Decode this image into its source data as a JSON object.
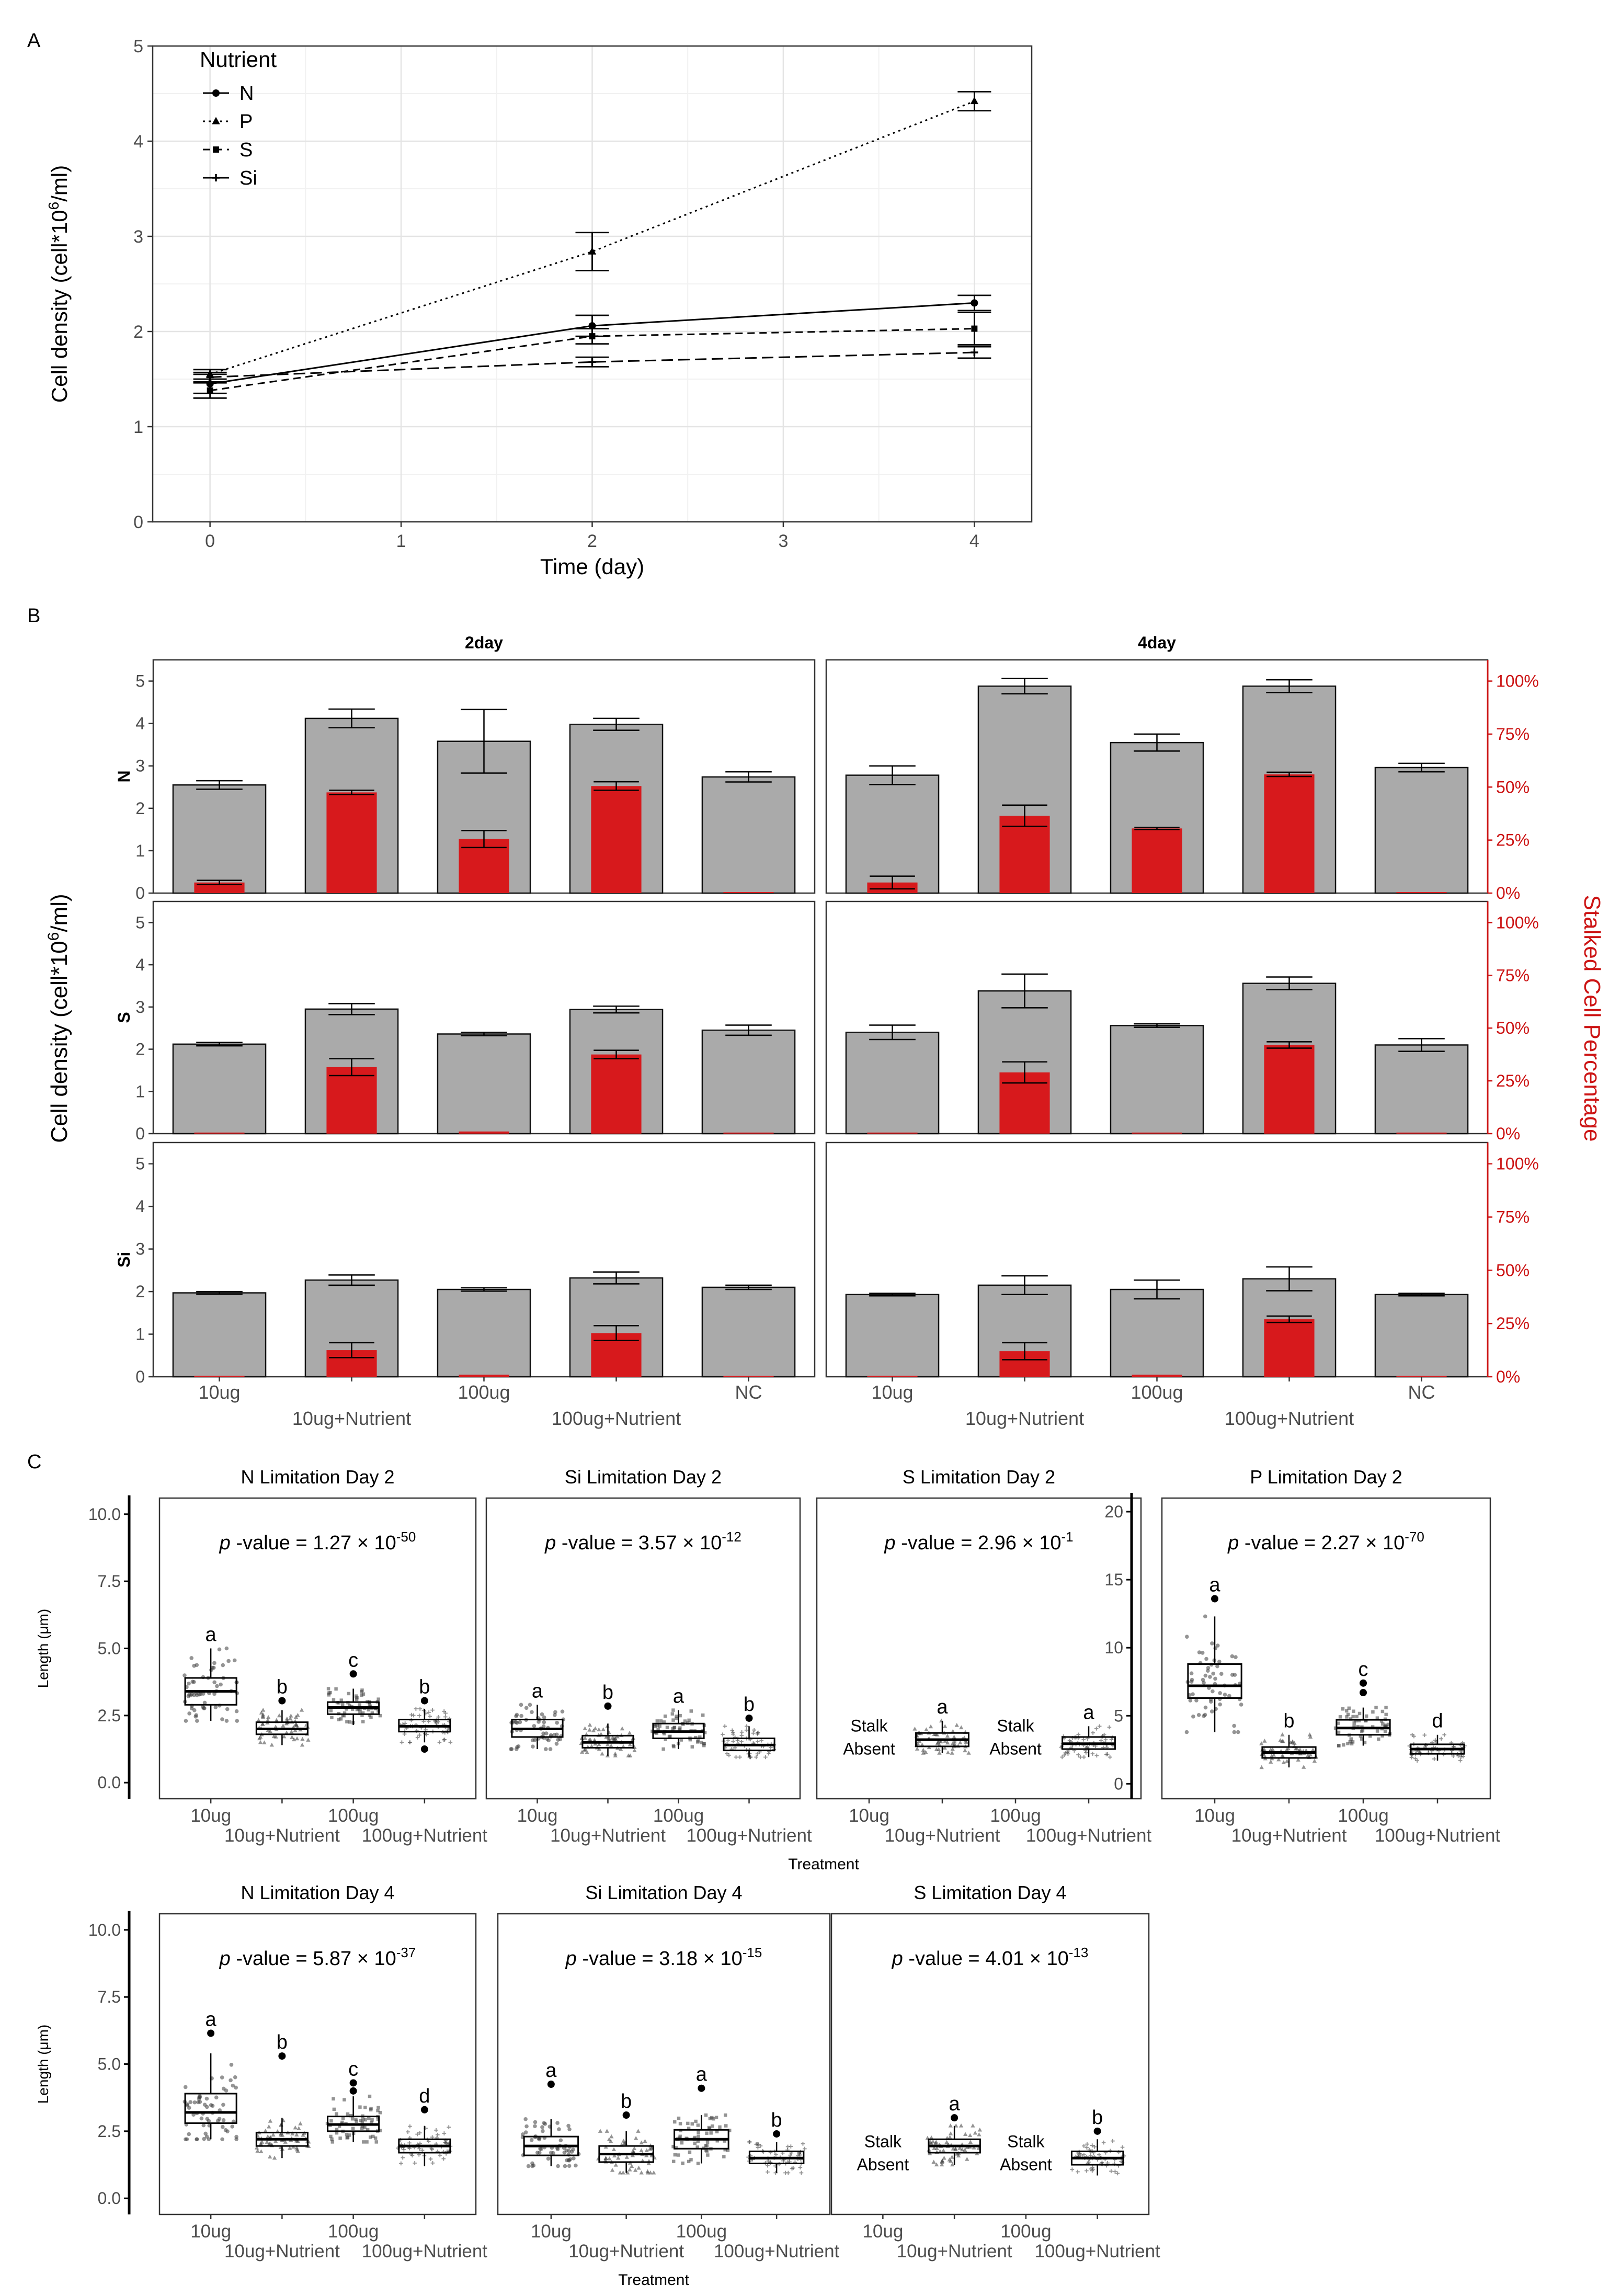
{
  "figure": {
    "panel_a_label": "A",
    "panel_b_label": "B",
    "panel_c_label": "C",
    "sup_6": "6",
    "sup_minus": "-",
    "pvalue_p": "p"
  },
  "chart_data": [
    {
      "type": "line",
      "panel": "A",
      "xlabel": "Time (day)",
      "ylabel_prefix": "Cell density (cell*10",
      "ylabel_sup": "6",
      "ylabel_suffix": "/ml)",
      "xlim": [
        -0.3,
        4.3
      ],
      "ylim": [
        0,
        5
      ],
      "xticks": [
        0,
        1,
        2,
        3,
        4
      ],
      "yticks": [
        0,
        1,
        2,
        3,
        4,
        5
      ],
      "legend_title": "Nutrient",
      "legend_position": "top-left",
      "x": [
        0,
        2,
        4
      ],
      "series": [
        {
          "name": "N",
          "marker": "circle",
          "dash": "solid",
          "values": [
            1.45,
            2.06,
            2.3
          ],
          "err": [
            0.1,
            0.11,
            0.08
          ]
        },
        {
          "name": "P",
          "marker": "triangle",
          "dash": "dotted",
          "values": [
            1.55,
            2.84,
            4.42
          ],
          "err": [
            0.05,
            0.2,
            0.1
          ]
        },
        {
          "name": "S",
          "marker": "square",
          "dash": "dashed",
          "values": [
            1.38,
            1.95,
            2.03
          ],
          "err": [
            0.08,
            0.08,
            0.17
          ]
        },
        {
          "name": "Si",
          "marker": "plus",
          "dash": "longdash",
          "values": [
            1.52,
            1.68,
            1.78
          ],
          "err": [
            0.05,
            0.05,
            0.06
          ]
        }
      ]
    },
    {
      "type": "bar",
      "panel": "B",
      "ylabel_prefix": "Cell density (cell*10",
      "ylabel_sup": "6",
      "ylabel_suffix": "/ml)",
      "y2label": "Stalked Cell Percentage",
      "ylim": [
        0,
        5.5
      ],
      "yticks": [
        0,
        1,
        2,
        3,
        4,
        5
      ],
      "y2ticks": [
        "0%",
        "25%",
        "50%",
        "75%",
        "100%"
      ],
      "categories": [
        "10ug",
        "10ug+Nutrient",
        "100ug",
        "100ug+Nutrient",
        "NC"
      ],
      "columns": [
        "2day",
        "4day"
      ],
      "rows": [
        "N",
        "S",
        "Si"
      ],
      "panels": [
        {
          "row": "N",
          "col": "2day",
          "density": [
            2.55,
            4.12,
            3.58,
            3.98,
            2.74
          ],
          "density_err": [
            0.1,
            0.22,
            0.75,
            0.14,
            0.12
          ],
          "stalked_pct": [
            5,
            47.5,
            25.5,
            50.5,
            0
          ],
          "stalked_err": [
            1,
            1,
            4,
            2,
            0
          ]
        },
        {
          "row": "N",
          "col": "4day",
          "density": [
            2.78,
            4.88,
            3.55,
            4.88,
            2.96
          ],
          "density_err": [
            0.22,
            0.18,
            0.2,
            0.15,
            0.1
          ],
          "stalked_pct": [
            5,
            36.5,
            30.5,
            56,
            0
          ],
          "stalked_err": [
            3,
            5,
            0.5,
            1,
            0
          ]
        },
        {
          "row": "S",
          "col": "2day",
          "density": [
            2.12,
            2.95,
            2.36,
            2.94,
            2.45
          ],
          "density_err": [
            0.04,
            0.13,
            0.04,
            0.08,
            0.12
          ],
          "stalked_pct": [
            0.5,
            31.5,
            1,
            37.5,
            0
          ],
          "stalked_err": [
            0,
            4,
            0.3,
            2,
            0
          ]
        },
        {
          "row": "S",
          "col": "4day",
          "density": [
            2.4,
            3.38,
            2.56,
            3.56,
            2.1
          ],
          "density_err": [
            0.17,
            0.4,
            0.04,
            0.15,
            0.15
          ],
          "stalked_pct": [
            0.5,
            29,
            0.5,
            42,
            0
          ],
          "stalked_err": [
            0,
            5,
            0,
            1.5,
            0
          ]
        },
        {
          "row": "Si",
          "col": "2day",
          "density": [
            1.97,
            2.27,
            2.05,
            2.32,
            2.1
          ],
          "density_err": [
            0.03,
            0.12,
            0.04,
            0.14,
            0.05
          ],
          "stalked_pct": [
            0.5,
            12.5,
            1,
            20.5,
            0
          ],
          "stalked_err": [
            0,
            3.5,
            0.3,
            3.5,
            0
          ]
        },
        {
          "row": "Si",
          "col": "4day",
          "density": [
            1.93,
            2.15,
            2.05,
            2.3,
            1.93
          ],
          "density_err": [
            0.03,
            0.22,
            0.22,
            0.28,
            0.03
          ],
          "stalked_pct": [
            0.5,
            12,
            1,
            27,
            0
          ],
          "stalked_err": [
            0,
            4,
            0.3,
            1.5,
            0
          ]
        }
      ]
    },
    {
      "type": "box",
      "panel": "C",
      "ylabel": "Length (μm)",
      "xlabel": "Treatment",
      "categories": [
        "10ug",
        "10ug+Nutrient",
        "100ug",
        "100ug+Nutrient"
      ],
      "pvalue_label": " -value = ",
      "absent_line1": "Stalk",
      "absent_line2": "Absent",
      "panels": [
        {
          "title": "N Limitation Day 2",
          "p_mantissa": "1.27 × 10",
          "p_exp": "-50",
          "ylim": [
            -0.6,
            10.6
          ],
          "yticks": [
            "0.0",
            "2.5",
            "5.0",
            "7.5",
            "10.0"
          ],
          "yvals": [
            0,
            2.5,
            5,
            7.5,
            10
          ],
          "boxes": [
            {
              "min": 2.3,
              "q1": 2.9,
              "median": 3.4,
              "q3": 3.9,
              "max": 5.0,
              "letter": "a",
              "outliers": [],
              "shape": "circle"
            },
            {
              "min": 1.4,
              "q1": 1.8,
              "median": 2.0,
              "q3": 2.25,
              "max": 2.7,
              "letter": "b",
              "outliers": [
                3.05
              ],
              "shape": "triangle"
            },
            {
              "min": 2.15,
              "q1": 2.55,
              "median": 2.8,
              "q3": 3.0,
              "max": 3.5,
              "letter": "c",
              "outliers": [
                4.05
              ],
              "shape": "square"
            },
            {
              "min": 1.5,
              "q1": 1.9,
              "median": 2.1,
              "q3": 2.35,
              "max": 2.75,
              "letter": "b",
              "outliers": [
                3.05,
                1.25
              ],
              "shape": "plus"
            }
          ]
        },
        {
          "title": "Si Limitation Day 2",
          "p_mantissa": "3.57 × 10",
          "p_exp": "-12",
          "ylim": [
            -0.6,
            10.6
          ],
          "yticks": [],
          "yvals": [
            0,
            2.5,
            5,
            7.5,
            10
          ],
          "boxes": [
            {
              "min": 1.25,
              "q1": 1.7,
              "median": 2.0,
              "q3": 2.35,
              "max": 2.9,
              "letter": "a",
              "outliers": [],
              "shape": "circle"
            },
            {
              "min": 1.0,
              "q1": 1.3,
              "median": 1.5,
              "q3": 1.75,
              "max": 2.2,
              "letter": "b",
              "outliers": [
                2.85
              ],
              "shape": "triangle"
            },
            {
              "min": 1.25,
              "q1": 1.65,
              "median": 1.9,
              "q3": 2.2,
              "max": 2.7,
              "letter": "a",
              "outliers": [],
              "shape": "square"
            },
            {
              "min": 0.95,
              "q1": 1.2,
              "median": 1.4,
              "q3": 1.65,
              "max": 2.1,
              "letter": "b",
              "outliers": [
                2.4
              ],
              "shape": "plus"
            }
          ]
        },
        {
          "title": "S Limitation Day 2",
          "p_mantissa": "2.96 × 10",
          "p_exp": "-1",
          "ylim": [
            -0.6,
            10.6
          ],
          "yticks": [],
          "yvals": [
            0,
            2.5,
            5,
            7.5,
            10
          ],
          "boxes": [
            null,
            {
              "min": 1.1,
              "q1": 1.35,
              "median": 1.6,
              "q3": 1.85,
              "max": 2.3,
              "letter": "a",
              "outliers": [],
              "shape": "triangle"
            },
            null,
            {
              "min": 0.95,
              "q1": 1.25,
              "median": 1.45,
              "q3": 1.7,
              "max": 2.1,
              "letter": "a",
              "outliers": [],
              "shape": "plus"
            }
          ]
        },
        {
          "title": "P Limitation Day 2",
          "p_mantissa": "2.27 × 10",
          "p_exp": "-70",
          "ylim": [
            -1.1,
            21.0
          ],
          "yticks": [
            "0",
            "5",
            "10",
            "15",
            "20"
          ],
          "yvals": [
            0,
            5,
            10,
            15,
            20
          ],
          "boxes": [
            {
              "min": 3.8,
              "q1": 6.3,
              "median": 7.2,
              "q3": 8.8,
              "max": 12.3,
              "letter": "a",
              "outliers": [
                13.6
              ],
              "shape": "circle"
            },
            {
              "min": 1.2,
              "q1": 1.9,
              "median": 2.3,
              "q3": 2.7,
              "max": 3.6,
              "letter": "b",
              "outliers": [],
              "shape": "triangle"
            },
            {
              "min": 2.8,
              "q1": 3.6,
              "median": 4.1,
              "q3": 4.7,
              "max": 5.6,
              "letter": "c",
              "outliers": [
                6.7,
                7.4
              ],
              "shape": "square"
            },
            {
              "min": 1.7,
              "q1": 2.2,
              "median": 2.55,
              "q3": 2.9,
              "max": 3.6,
              "letter": "d",
              "outliers": [],
              "shape": "plus"
            }
          ]
        },
        {
          "title": "N Limitation Day 4",
          "p_mantissa": "5.87 × 10",
          "p_exp": "-37",
          "ylim": [
            -0.6,
            10.6
          ],
          "yticks": [
            "0.0",
            "2.5",
            "5.0",
            "7.5",
            "10.0"
          ],
          "yvals": [
            0,
            2.5,
            5,
            7.5,
            10
          ],
          "boxes": [
            {
              "min": 2.2,
              "q1": 2.8,
              "median": 3.2,
              "q3": 3.9,
              "max": 5.4,
              "letter": "a",
              "outliers": [
                6.15
              ],
              "shape": "circle"
            },
            {
              "min": 1.5,
              "q1": 1.95,
              "median": 2.2,
              "q3": 2.45,
              "max": 3.0,
              "letter": "b",
              "outliers": [
                5.3
              ],
              "shape": "triangle"
            },
            {
              "min": 2.1,
              "q1": 2.5,
              "median": 2.75,
              "q3": 3.05,
              "max": 3.8,
              "letter": "c",
              "outliers": [
                4.0,
                4.3
              ],
              "shape": "square"
            },
            {
              "min": 1.2,
              "q1": 1.7,
              "median": 1.95,
              "q3": 2.2,
              "max": 2.7,
              "letter": "d",
              "outliers": [
                3.3
              ],
              "shape": "plus"
            }
          ]
        },
        {
          "title": "Si Limitation Day 4",
          "p_mantissa": "3.18 × 10",
          "p_exp": "-15",
          "ylim": [
            -0.6,
            10.6
          ],
          "yticks": [],
          "yvals": [
            0,
            2.5,
            5,
            7.5,
            10
          ],
          "boxes": [
            {
              "min": 1.2,
              "q1": 1.6,
              "median": 1.95,
              "q3": 2.3,
              "max": 2.95,
              "letter": "a",
              "outliers": [
                4.25
              ],
              "shape": "circle"
            },
            {
              "min": 0.95,
              "q1": 1.35,
              "median": 1.65,
              "q3": 1.95,
              "max": 2.5,
              "letter": "b",
              "outliers": [
                3.1
              ],
              "shape": "triangle"
            },
            {
              "min": 1.3,
              "q1": 1.85,
              "median": 2.2,
              "q3": 2.55,
              "max": 3.1,
              "letter": "a",
              "outliers": [
                4.1
              ],
              "shape": "square"
            },
            {
              "min": 0.95,
              "q1": 1.3,
              "median": 1.5,
              "q3": 1.75,
              "max": 2.1,
              "letter": "b",
              "outliers": [
                2.4
              ],
              "shape": "plus"
            }
          ]
        },
        {
          "title": "S Limitation Day 4",
          "p_mantissa": "4.01 × 10",
          "p_exp": "-13",
          "ylim": [
            -0.6,
            10.6
          ],
          "yticks": [],
          "yvals": [
            0,
            2.5,
            5,
            7.5,
            10
          ],
          "boxes": [
            null,
            {
              "min": 1.25,
              "q1": 1.7,
              "median": 1.95,
              "q3": 2.2,
              "max": 2.7,
              "letter": "a",
              "outliers": [
                3.0
              ],
              "shape": "triangle"
            },
            null,
            {
              "min": 0.85,
              "q1": 1.25,
              "median": 1.5,
              "q3": 1.75,
              "max": 2.2,
              "letter": "b",
              "outliers": [
                2.5
              ],
              "shape": "plus"
            }
          ]
        }
      ]
    }
  ]
}
